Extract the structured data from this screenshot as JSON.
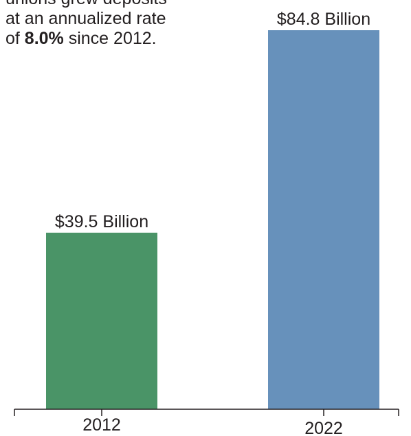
{
  "callout": {
    "line1": "unions grew deposits",
    "line2": "at an annualized rate",
    "line3_prefix": "of ",
    "line3_bold": "8.0%",
    "line3_suffix": " since 2012."
  },
  "colors": {
    "bar_2012": "#4a9467",
    "bar_2022": "#6791bb",
    "axis": "#231f20",
    "text": "#231f20"
  },
  "chart_data": {
    "type": "bar",
    "categories": [
      "2012",
      "2022"
    ],
    "values": [
      39.5,
      84.8
    ],
    "data_labels": [
      "$39.5 Billion",
      "$84.8 Billion"
    ],
    "ylim": [
      0,
      84.8
    ],
    "grid": false,
    "legend": "none"
  }
}
